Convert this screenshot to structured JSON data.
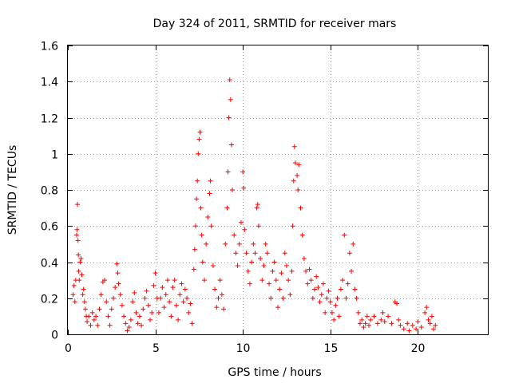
{
  "chart_data": {
    "type": "scatter",
    "title": "Day 324 of 2011, SRMTID for receiver mars",
    "xlabel": "GPS time / hours",
    "ylabel": "SRMTID / TECUs",
    "xlim": [
      0,
      24
    ],
    "ylim": [
      0,
      1.6
    ],
    "xticks": [
      0,
      5,
      10,
      15,
      20
    ],
    "xtick_labels": [
      "0",
      "5",
      "10",
      "15",
      "20"
    ],
    "yticks": [
      0,
      0.2,
      0.4,
      0.6,
      0.8,
      1,
      1.2,
      1.4,
      1.6
    ],
    "ytick_labels": [
      "0",
      "0.2",
      "0.4",
      "0.6",
      "0.8",
      "1",
      "1.2",
      "1.4",
      "1.6"
    ],
    "grid": true,
    "marker": "+",
    "color": "#ff0000",
    "series": [
      {
        "name": "SRMTID",
        "points": [
          [
            0.3,
            0.22
          ],
          [
            0.35,
            0.27
          ],
          [
            0.4,
            0.18
          ],
          [
            0.45,
            0.3
          ],
          [
            0.5,
            0.55
          ],
          [
            0.52,
            0.58
          ],
          [
            0.55,
            0.72
          ],
          [
            0.58,
            0.52
          ],
          [
            0.6,
            0.44
          ],
          [
            0.62,
            0.35
          ],
          [
            0.65,
            0.3
          ],
          [
            0.7,
            0.4
          ],
          [
            0.75,
            0.42
          ],
          [
            0.8,
            0.33
          ],
          [
            0.85,
            0.22
          ],
          [
            0.9,
            0.25
          ],
          [
            0.95,
            0.18
          ],
          [
            1.0,
            0.14
          ],
          [
            1.05,
            0.1
          ],
          [
            1.1,
            0.07
          ],
          [
            1.2,
            0.1
          ],
          [
            1.3,
            0.05
          ],
          [
            1.4,
            0.12
          ],
          [
            1.5,
            0.08
          ],
          [
            1.6,
            0.1
          ],
          [
            1.7,
            0.05
          ],
          [
            1.8,
            0.14
          ],
          [
            1.9,
            0.22
          ],
          [
            2.0,
            0.29
          ],
          [
            2.1,
            0.3
          ],
          [
            2.2,
            0.18
          ],
          [
            2.3,
            0.1
          ],
          [
            2.4,
            0.05
          ],
          [
            2.5,
            0.14
          ],
          [
            2.6,
            0.2
          ],
          [
            2.7,
            0.26
          ],
          [
            2.8,
            0.39
          ],
          [
            2.85,
            0.34
          ],
          [
            2.9,
            0.28
          ],
          [
            3.0,
            0.22
          ],
          [
            3.1,
            0.16
          ],
          [
            3.2,
            0.1
          ],
          [
            3.3,
            0.06
          ],
          [
            3.4,
            0.02
          ],
          [
            3.5,
            0.04
          ],
          [
            3.6,
            0.08
          ],
          [
            3.7,
            0.18
          ],
          [
            3.8,
            0.23
          ],
          [
            3.9,
            0.12
          ],
          [
            4.0,
            0.06
          ],
          [
            4.1,
            0.1
          ],
          [
            4.2,
            0.05
          ],
          [
            4.3,
            0.14
          ],
          [
            4.4,
            0.2
          ],
          [
            4.5,
            0.24
          ],
          [
            4.6,
            0.16
          ],
          [
            4.7,
            0.08
          ],
          [
            4.8,
            0.12
          ],
          [
            4.9,
            0.27
          ],
          [
            5.0,
            0.34
          ],
          [
            5.1,
            0.2
          ],
          [
            5.2,
            0.12
          ],
          [
            5.3,
            0.2
          ],
          [
            5.4,
            0.26
          ],
          [
            5.5,
            0.15
          ],
          [
            5.6,
            0.22
          ],
          [
            5.7,
            0.3
          ],
          [
            5.8,
            0.18
          ],
          [
            5.9,
            0.1
          ],
          [
            6.0,
            0.26
          ],
          [
            6.1,
            0.3
          ],
          [
            6.2,
            0.16
          ],
          [
            6.3,
            0.08
          ],
          [
            6.4,
            0.22
          ],
          [
            6.5,
            0.28
          ],
          [
            6.6,
            0.18
          ],
          [
            6.7,
            0.25
          ],
          [
            6.8,
            0.2
          ],
          [
            6.9,
            0.12
          ],
          [
            7.0,
            0.17
          ],
          [
            7.1,
            0.06
          ],
          [
            7.2,
            0.36
          ],
          [
            7.25,
            0.47
          ],
          [
            7.3,
            0.6
          ],
          [
            7.35,
            0.75
          ],
          [
            7.4,
            0.85
          ],
          [
            7.45,
            1.0
          ],
          [
            7.5,
            1.08
          ],
          [
            7.55,
            1.12
          ],
          [
            7.6,
            0.7
          ],
          [
            7.65,
            0.55
          ],
          [
            7.7,
            0.4
          ],
          [
            7.8,
            0.3
          ],
          [
            7.9,
            0.5
          ],
          [
            8.0,
            0.65
          ],
          [
            8.1,
            0.78
          ],
          [
            8.15,
            0.85
          ],
          [
            8.2,
            0.6
          ],
          [
            8.3,
            0.38
          ],
          [
            8.4,
            0.25
          ],
          [
            8.5,
            0.15
          ],
          [
            8.6,
            0.2
          ],
          [
            8.7,
            0.3
          ],
          [
            8.8,
            0.22
          ],
          [
            8.9,
            0.14
          ],
          [
            9.0,
            0.5
          ],
          [
            9.1,
            0.7
          ],
          [
            9.15,
            0.9
          ],
          [
            9.2,
            1.2
          ],
          [
            9.25,
            1.41
          ],
          [
            9.3,
            1.3
          ],
          [
            9.35,
            1.05
          ],
          [
            9.4,
            0.8
          ],
          [
            9.5,
            0.55
          ],
          [
            9.6,
            0.45
          ],
          [
            9.7,
            0.38
          ],
          [
            9.8,
            0.5
          ],
          [
            9.9,
            0.62
          ],
          [
            10.0,
            0.9
          ],
          [
            10.05,
            0.81
          ],
          [
            10.1,
            0.58
          ],
          [
            10.2,
            0.45
          ],
          [
            10.3,
            0.35
          ],
          [
            10.4,
            0.28
          ],
          [
            10.5,
            0.4
          ],
          [
            10.6,
            0.5
          ],
          [
            10.7,
            0.45
          ],
          [
            10.8,
            0.7
          ],
          [
            10.85,
            0.72
          ],
          [
            10.9,
            0.6
          ],
          [
            11.0,
            0.42
          ],
          [
            11.1,
            0.3
          ],
          [
            11.2,
            0.38
          ],
          [
            11.3,
            0.5
          ],
          [
            11.4,
            0.45
          ],
          [
            11.5,
            0.28
          ],
          [
            11.6,
            0.2
          ],
          [
            11.7,
            0.35
          ],
          [
            11.8,
            0.4
          ],
          [
            11.9,
            0.3
          ],
          [
            12.0,
            0.15
          ],
          [
            12.1,
            0.25
          ],
          [
            12.2,
            0.34
          ],
          [
            12.3,
            0.2
          ],
          [
            12.4,
            0.45
          ],
          [
            12.5,
            0.38
          ],
          [
            12.6,
            0.3
          ],
          [
            12.7,
            0.22
          ],
          [
            12.8,
            0.35
          ],
          [
            12.85,
            0.6
          ],
          [
            12.9,
            0.85
          ],
          [
            12.95,
            1.04
          ],
          [
            13.0,
            0.95
          ],
          [
            13.1,
            0.88
          ],
          [
            13.15,
            0.8
          ],
          [
            13.2,
            0.94
          ],
          [
            13.3,
            0.7
          ],
          [
            13.4,
            0.55
          ],
          [
            13.5,
            0.42
          ],
          [
            13.6,
            0.35
          ],
          [
            13.7,
            0.28
          ],
          [
            13.8,
            0.36
          ],
          [
            13.9,
            0.3
          ],
          [
            14.0,
            0.2
          ],
          [
            14.1,
            0.25
          ],
          [
            14.2,
            0.32
          ],
          [
            14.3,
            0.26
          ],
          [
            14.4,
            0.18
          ],
          [
            14.5,
            0.22
          ],
          [
            14.6,
            0.28
          ],
          [
            14.7,
            0.12
          ],
          [
            14.8,
            0.2
          ],
          [
            14.9,
            0.24
          ],
          [
            15.0,
            0.18
          ],
          [
            15.1,
            0.12
          ],
          [
            15.2,
            0.08
          ],
          [
            15.3,
            0.16
          ],
          [
            15.4,
            0.2
          ],
          [
            15.5,
            0.1
          ],
          [
            15.6,
            0.25
          ],
          [
            15.7,
            0.3
          ],
          [
            15.8,
            0.55
          ],
          [
            15.9,
            0.2
          ],
          [
            16.0,
            0.28
          ],
          [
            16.1,
            0.45
          ],
          [
            16.2,
            0.35
          ],
          [
            16.3,
            0.5
          ],
          [
            16.4,
            0.25
          ],
          [
            16.5,
            0.2
          ],
          [
            16.6,
            0.12
          ],
          [
            16.7,
            0.06
          ],
          [
            16.8,
            0.08
          ],
          [
            16.9,
            0.04
          ],
          [
            17.0,
            0.06
          ],
          [
            17.1,
            0.1
          ],
          [
            17.2,
            0.05
          ],
          [
            17.3,
            0.08
          ],
          [
            17.5,
            0.1
          ],
          [
            17.7,
            0.06
          ],
          [
            17.9,
            0.08
          ],
          [
            18.0,
            0.12
          ],
          [
            18.1,
            0.07
          ],
          [
            18.3,
            0.1
          ],
          [
            18.5,
            0.06
          ],
          [
            18.7,
            0.18
          ],
          [
            18.8,
            0.17
          ],
          [
            18.9,
            0.08
          ],
          [
            19.0,
            0.05
          ],
          [
            19.2,
            0.03
          ],
          [
            19.4,
            0.06
          ],
          [
            19.5,
            0.02
          ],
          [
            19.7,
            0.05
          ],
          [
            19.9,
            0.03
          ],
          [
            20.0,
            0.07
          ],
          [
            20.2,
            0.04
          ],
          [
            20.4,
            0.12
          ],
          [
            20.5,
            0.15
          ],
          [
            20.6,
            0.08
          ],
          [
            20.7,
            0.06
          ],
          [
            20.8,
            0.1
          ],
          [
            20.9,
            0.03
          ],
          [
            21.0,
            0.05
          ]
        ]
      }
    ]
  }
}
